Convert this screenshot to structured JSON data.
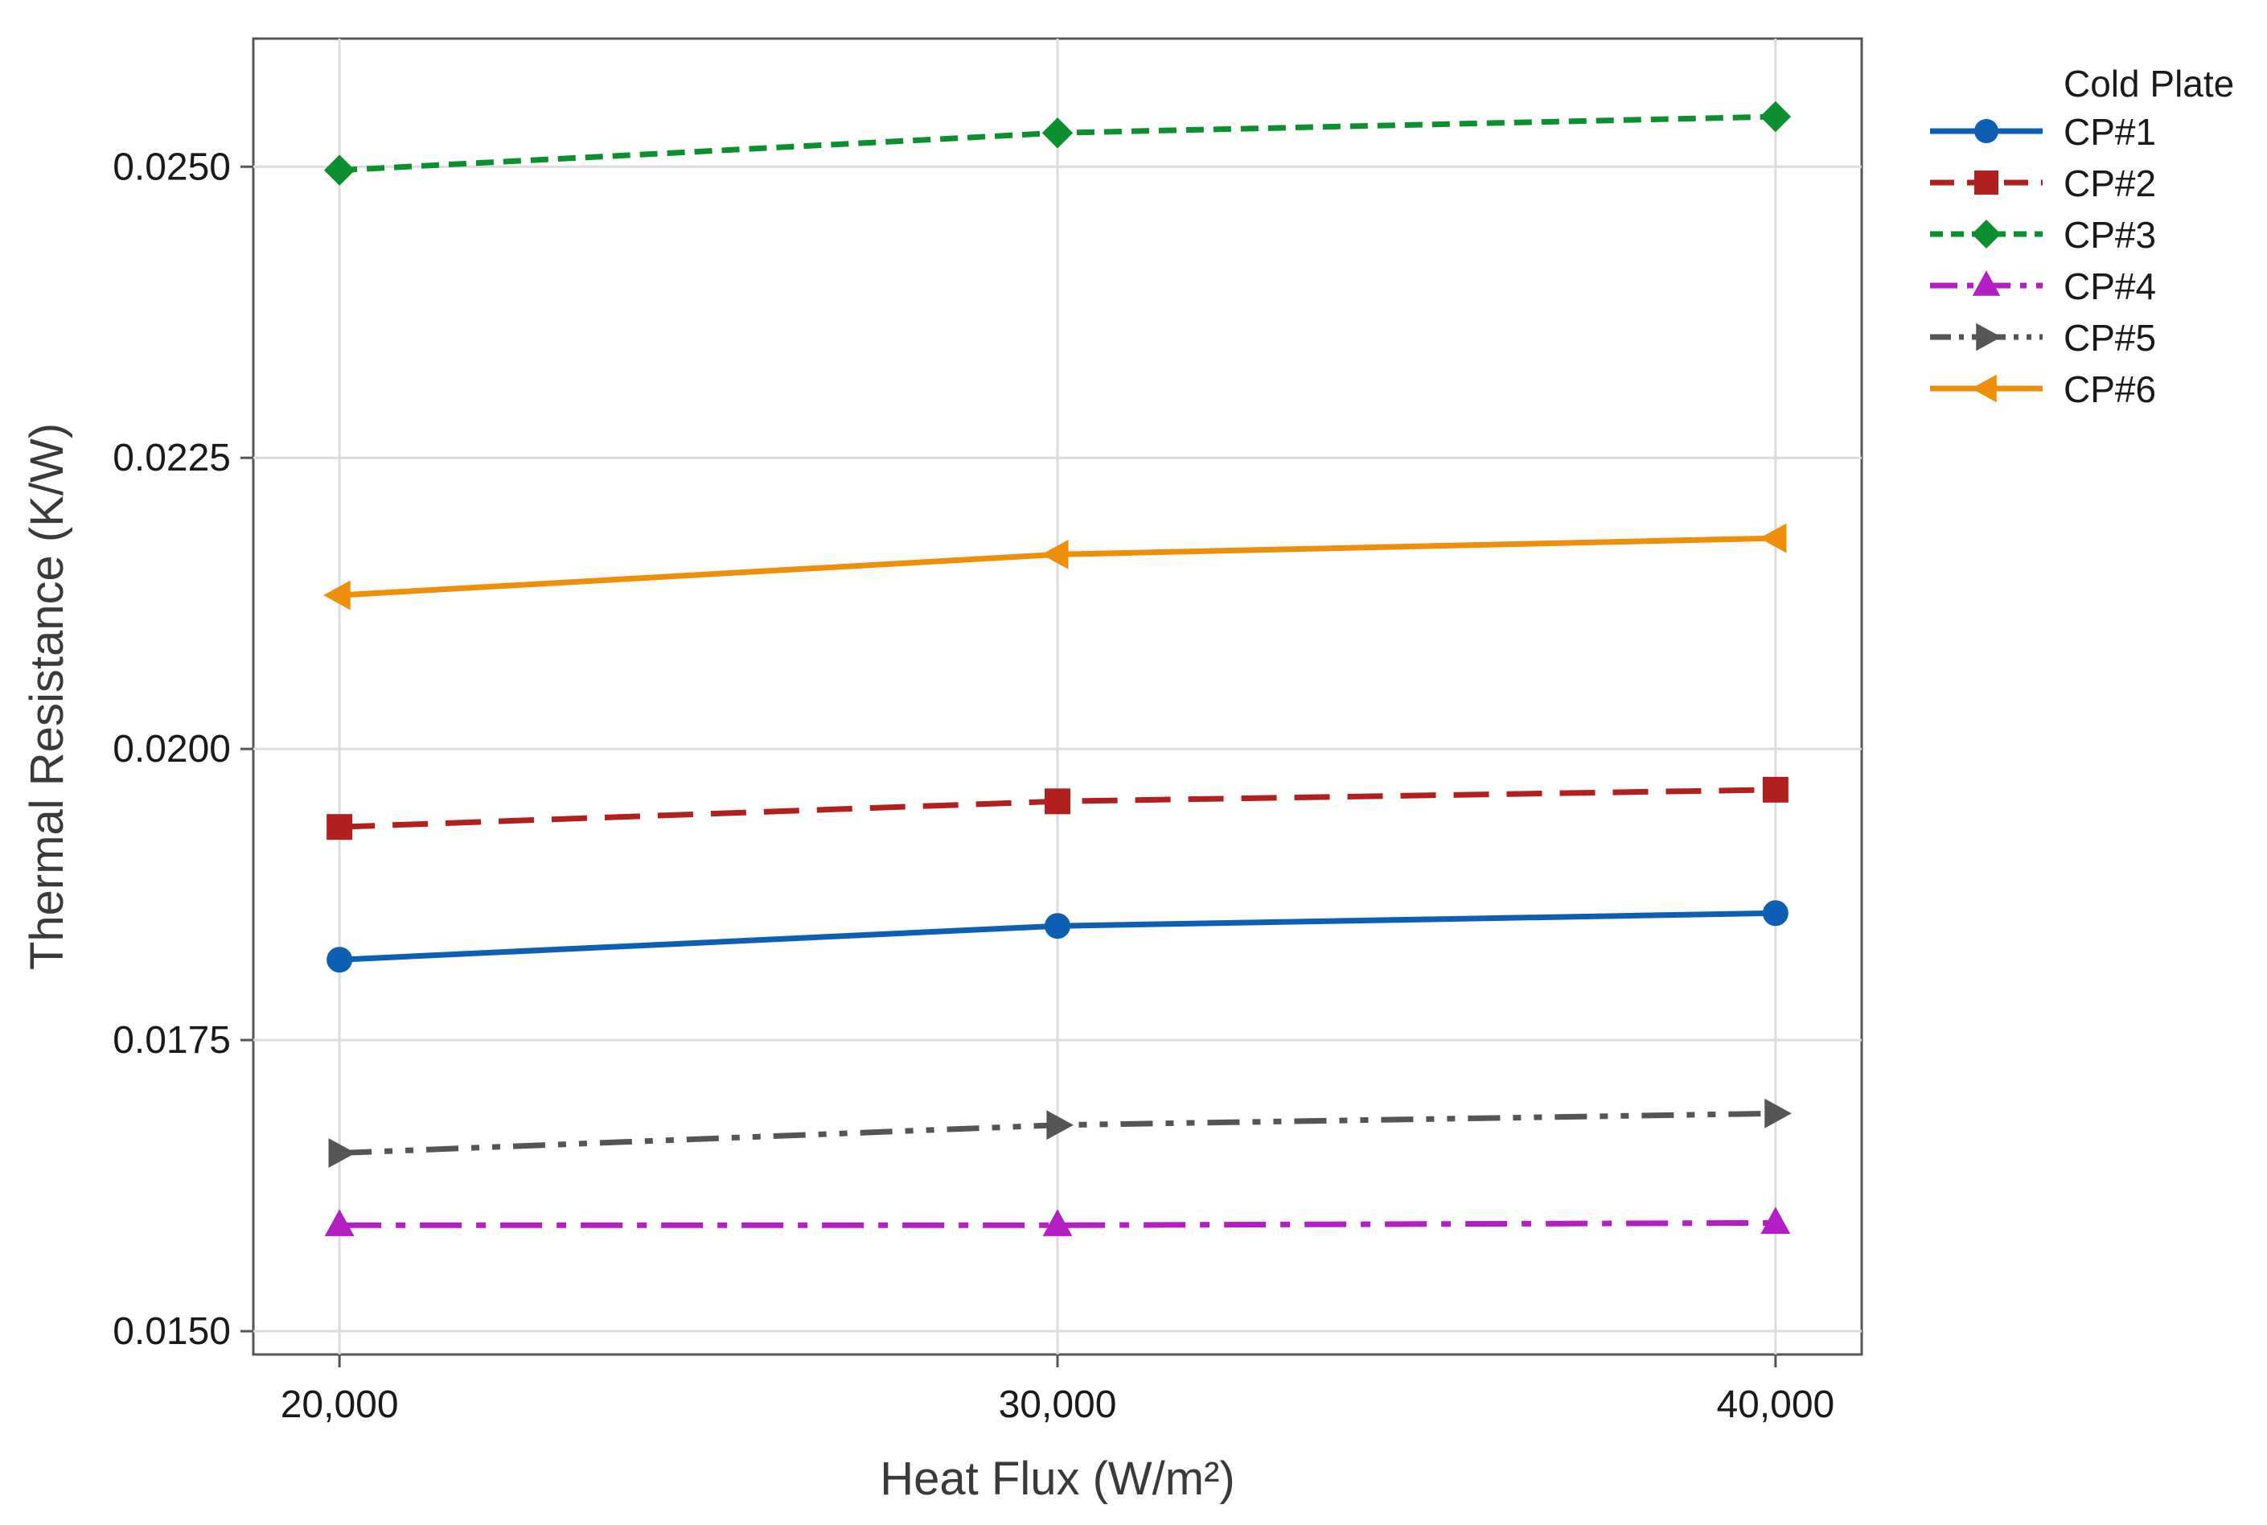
{
  "chart_data": {
    "type": "line",
    "title": "",
    "xlabel": "Heat Flux (W/m²)",
    "ylabel": "Thermal Resistance (K/W)",
    "x": [
      20000,
      30000,
      40000
    ],
    "x_tick_labels": [
      "20,000",
      "30,000",
      "40,000"
    ],
    "xlim": [
      18800,
      41200
    ],
    "ylim": [
      0.0148,
      0.0261
    ],
    "y_ticks": [
      0.015,
      0.0175,
      0.02,
      0.0225,
      0.025
    ],
    "y_tick_labels": [
      "0.0150",
      "0.0175",
      "0.0200",
      "0.0225",
      "0.0250"
    ],
    "grid": true,
    "legend": {
      "title": "Cold Plate",
      "position": "right"
    },
    "series": [
      {
        "name": "CP#1",
        "color": "#0d5fb3",
        "dash": "solid",
        "marker": "circle",
        "values": [
          0.01819,
          0.01848,
          0.01859
        ]
      },
      {
        "name": "CP#2",
        "color": "#b21f1f",
        "dash": "dashed",
        "marker": "square",
        "values": [
          0.01933,
          0.01955,
          0.01965
        ]
      },
      {
        "name": "CP#3",
        "color": "#0c8f2e",
        "dash": "dotted",
        "marker": "diamond",
        "values": [
          0.02497,
          0.02529,
          0.02543
        ]
      },
      {
        "name": "CP#4",
        "color": "#b31fc4",
        "dash": "dashdot",
        "marker": "triangle-up",
        "values": [
          0.01591,
          0.01591,
          0.01593
        ]
      },
      {
        "name": "CP#5",
        "color": "#555555",
        "dash": "dashdotdot",
        "marker": "triangle-right",
        "values": [
          0.01653,
          0.01677,
          0.01687
        ]
      },
      {
        "name": "CP#6",
        "color": "#ef8e0b",
        "dash": "solid",
        "marker": "triangle-left",
        "values": [
          0.02132,
          0.02167,
          0.02181
        ]
      }
    ]
  }
}
